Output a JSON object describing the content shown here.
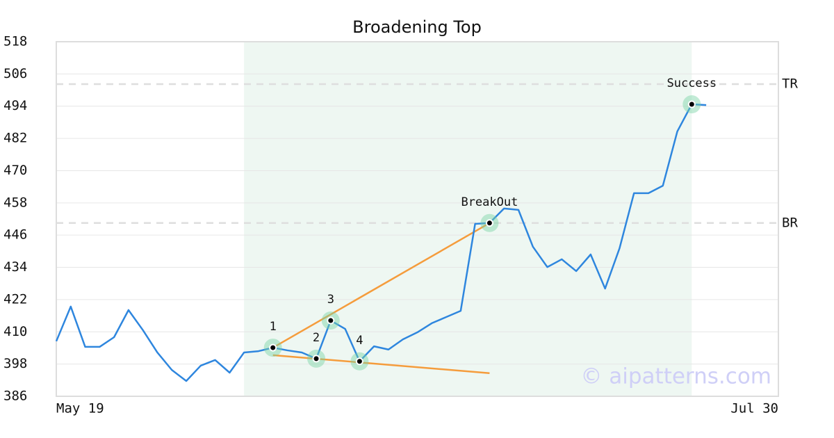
{
  "chart_data": {
    "type": "line",
    "title": "Broadening Top",
    "categories": [
      "May 19",
      null,
      null,
      null,
      null,
      null,
      null,
      null,
      null,
      null,
      null,
      null,
      null,
      null,
      null,
      null,
      null,
      null,
      null,
      null,
      null,
      null,
      null,
      null,
      null,
      null,
      null,
      null,
      null,
      null,
      null,
      null,
      null,
      null,
      null,
      null,
      null,
      null,
      null,
      null,
      null,
      null,
      null,
      null,
      null,
      null,
      null,
      null,
      null,
      null,
      "Jul 30"
    ],
    "series": [
      {
        "color": "#2e86de",
        "values": [
          406.5,
          419.4,
          404.4,
          404.4,
          408.0,
          418.1,
          410.6,
          402.3,
          395.8,
          391.7,
          397.4,
          399.5,
          394.8,
          402.3,
          402.8,
          404.1,
          403.1,
          402.3,
          400.0,
          414.2,
          411.1,
          399.0,
          404.6,
          403.4,
          407.2,
          409.8,
          413.2,
          415.5,
          417.8,
          450.2,
          450.5,
          455.9,
          455.4,
          441.7,
          434.1,
          437.0,
          432.6,
          438.8,
          426.1,
          441.1,
          461.6,
          461.6,
          464.4,
          484.6,
          494.7,
          494.4,
          null,
          null,
          null,
          null,
          null
        ]
      }
    ],
    "ylim": [
      386,
      518
    ],
    "yticks": [
      386,
      398,
      410,
      422,
      434,
      446,
      458,
      470,
      482,
      494,
      506,
      518
    ],
    "grid": true,
    "shaded_range": [
      13,
      44
    ],
    "shade_color": "#eef7f2",
    "levels": [
      {
        "name": "TR",
        "value": 502.2
      },
      {
        "name": "BR",
        "value": 450.5
      }
    ],
    "trendline_color": "#f59c3c",
    "trendlines": [
      {
        "x": [
          15,
          30
        ],
        "values": [
          404.1,
          450.5
        ]
      },
      {
        "x": [
          15,
          30
        ],
        "values": [
          401.3,
          394.6
        ]
      }
    ],
    "points": [
      {
        "label": "1",
        "index": 15
      },
      {
        "label": "2",
        "index": 18
      },
      {
        "label": "3",
        "index": 19
      },
      {
        "label": "4",
        "index": 21
      },
      {
        "label": "BreakOut",
        "index": 30
      },
      {
        "label": "Success",
        "index": 44
      }
    ],
    "watermark": "© aipatterns.com"
  }
}
